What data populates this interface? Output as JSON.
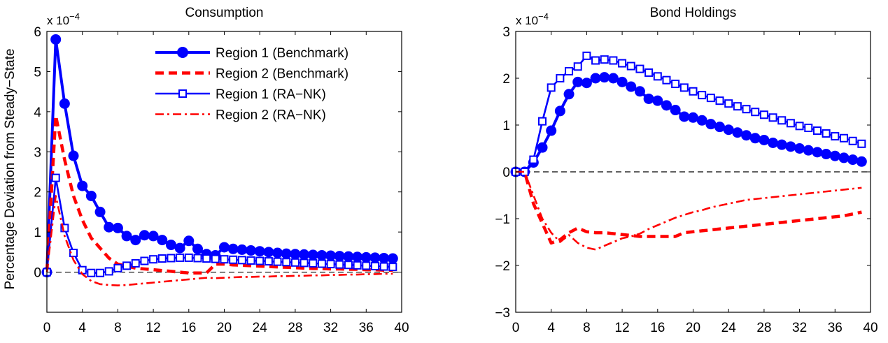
{
  "y_axis_label": "Percentage Deviation from Steady−State",
  "chart_data": [
    {
      "type": "line",
      "title": "Consumption",
      "xlabel": "",
      "ylabel": "Percentage Deviation from Steady−State",
      "exponent_label": "x 10",
      "exponent_power": "−4",
      "xlim": [
        0,
        40
      ],
      "ylim": [
        -1,
        6
      ],
      "xticks": [
        0,
        4,
        8,
        12,
        16,
        20,
        24,
        28,
        32,
        36,
        40
      ],
      "yticks": [
        -1,
        0,
        1,
        2,
        3,
        4,
        5,
        6
      ],
      "ytick_labels": [
        "",
        "0",
        "1",
        "2",
        "3",
        "4",
        "5",
        "6"
      ],
      "zero_line": true,
      "grid": false,
      "legend_position": "top-right",
      "series": [
        {
          "name": "Region 1 (Benchmark)",
          "color": "#0000ff",
          "style": "solid-thick",
          "marker": "circle",
          "y": [
            0,
            5.8,
            4.2,
            2.9,
            2.15,
            1.9,
            1.5,
            1.12,
            1.1,
            0.9,
            0.8,
            0.92,
            0.9,
            0.8,
            0.68,
            0.6,
            0.78,
            0.58,
            0.45,
            0.42,
            0.62,
            0.58,
            0.56,
            0.54,
            0.52,
            0.5,
            0.48,
            0.46,
            0.45,
            0.44,
            0.43,
            0.42,
            0.41,
            0.4,
            0.39,
            0.38,
            0.37,
            0.36,
            0.35,
            0.34
          ]
        },
        {
          "name": "Region 2 (Benchmark)",
          "color": "#ff0000",
          "style": "dashed-thick",
          "marker": "none",
          "y": [
            0,
            3.9,
            2.8,
            1.9,
            1.3,
            0.85,
            0.6,
            0.35,
            0.2,
            0.15,
            0.1,
            0.08,
            0.06,
            0.04,
            0.02,
            0.0,
            -0.02,
            -0.02,
            -0.02,
            0.2,
            0.2,
            0.18,
            0.17,
            0.16,
            0.15,
            0.14,
            0.13,
            0.12,
            0.11,
            0.1,
            0.09,
            0.09,
            0.08,
            0.08,
            0.07,
            0.07,
            0.06,
            0.06,
            0.05,
            0.05
          ]
        },
        {
          "name": "Region 1 (RA−NK)",
          "color": "#0000ff",
          "style": "solid",
          "marker": "square",
          "y": [
            0,
            2.35,
            1.1,
            0.48,
            0.05,
            -0.02,
            -0.02,
            0.02,
            0.1,
            0.16,
            0.22,
            0.28,
            0.32,
            0.34,
            0.35,
            0.36,
            0.36,
            0.35,
            0.34,
            0.33,
            0.32,
            0.31,
            0.3,
            0.29,
            0.28,
            0.27,
            0.26,
            0.25,
            0.24,
            0.23,
            0.22,
            0.21,
            0.2,
            0.19,
            0.18,
            0.17,
            0.16,
            0.15,
            0.14,
            0.13
          ]
        },
        {
          "name": "Region 2 (RA−NK)",
          "color": "#ff0000",
          "style": "dashdot",
          "marker": "none",
          "y": [
            0,
            1.9,
            0.9,
            0.3,
            -0.05,
            -0.22,
            -0.3,
            -0.32,
            -0.33,
            -0.32,
            -0.3,
            -0.28,
            -0.26,
            -0.24,
            -0.22,
            -0.2,
            -0.18,
            -0.16,
            -0.14,
            -0.15,
            -0.14,
            -0.13,
            -0.12,
            -0.12,
            -0.11,
            -0.11,
            -0.1,
            -0.1,
            -0.09,
            -0.09,
            -0.08,
            -0.08,
            -0.07,
            -0.07,
            -0.06,
            -0.06,
            -0.05,
            -0.05,
            -0.04,
            -0.04
          ]
        }
      ]
    },
    {
      "type": "line",
      "title": "Bond Holdings",
      "xlabel": "",
      "ylabel": "",
      "exponent_label": "x 10",
      "exponent_power": "−4",
      "xlim": [
        0,
        40
      ],
      "ylim": [
        -3,
        3
      ],
      "xticks": [
        0,
        4,
        8,
        12,
        16,
        20,
        24,
        28,
        32,
        36,
        40
      ],
      "yticks": [
        -3,
        -2,
        -1,
        0,
        1,
        2,
        3
      ],
      "ytick_labels": [
        "−3",
        "−2",
        "−1",
        "0",
        "1",
        "2",
        "3"
      ],
      "zero_line": true,
      "grid": false,
      "series": [
        {
          "name": "Region 1 (Benchmark)",
          "color": "#0000ff",
          "style": "solid-thick",
          "marker": "circle",
          "y": [
            0,
            0,
            0.2,
            0.52,
            0.88,
            1.3,
            1.66,
            1.92,
            1.9,
            2.0,
            2.02,
            2.0,
            1.92,
            1.82,
            1.72,
            1.56,
            1.52,
            1.42,
            1.32,
            1.18,
            1.16,
            1.1,
            1.02,
            0.96,
            0.9,
            0.84,
            0.78,
            0.72,
            0.68,
            0.62,
            0.58,
            0.54,
            0.5,
            0.46,
            0.42,
            0.38,
            0.34,
            0.3,
            0.26,
            0.22
          ]
        },
        {
          "name": "Region 2 (Benchmark)",
          "color": "#ff0000",
          "style": "dashed-thick",
          "marker": "none",
          "y": [
            0,
            0,
            -0.68,
            -1.1,
            -1.52,
            -1.45,
            -1.3,
            -1.2,
            -1.28,
            -1.3,
            -1.3,
            -1.32,
            -1.34,
            -1.36,
            -1.38,
            -1.38,
            -1.38,
            -1.38,
            -1.38,
            -1.3,
            -1.28,
            -1.26,
            -1.24,
            -1.22,
            -1.2,
            -1.18,
            -1.16,
            -1.14,
            -1.12,
            -1.1,
            -1.08,
            -1.06,
            -1.04,
            -1.02,
            -1.0,
            -0.98,
            -0.96,
            -0.94,
            -0.9,
            -0.86
          ]
        },
        {
          "name": "Region 1 (RA−NK)",
          "color": "#0000ff",
          "style": "solid",
          "marker": "square",
          "y": [
            0,
            0,
            0.26,
            1.08,
            1.8,
            2.0,
            2.15,
            2.25,
            2.48,
            2.38,
            2.4,
            2.38,
            2.32,
            2.26,
            2.2,
            2.12,
            2.04,
            1.96,
            1.88,
            1.8,
            1.72,
            1.64,
            1.58,
            1.52,
            1.46,
            1.4,
            1.34,
            1.28,
            1.22,
            1.16,
            1.1,
            1.04,
            0.98,
            0.94,
            0.88,
            0.82,
            0.76,
            0.72,
            0.66,
            0.6
          ]
        },
        {
          "name": "Region 2 (RA−NK)",
          "color": "#ff0000",
          "style": "dashdot",
          "marker": "none",
          "y": [
            0,
            0,
            -0.5,
            -1.0,
            -1.3,
            -1.5,
            -1.35,
            -1.52,
            -1.62,
            -1.66,
            -1.58,
            -1.5,
            -1.42,
            -1.38,
            -1.32,
            -1.22,
            -1.14,
            -1.06,
            -0.98,
            -0.92,
            -0.86,
            -0.82,
            -0.76,
            -0.72,
            -0.68,
            -0.64,
            -0.6,
            -0.58,
            -0.56,
            -0.54,
            -0.52,
            -0.5,
            -0.48,
            -0.46,
            -0.44,
            -0.42,
            -0.4,
            -0.38,
            -0.36,
            -0.34
          ]
        }
      ]
    }
  ]
}
